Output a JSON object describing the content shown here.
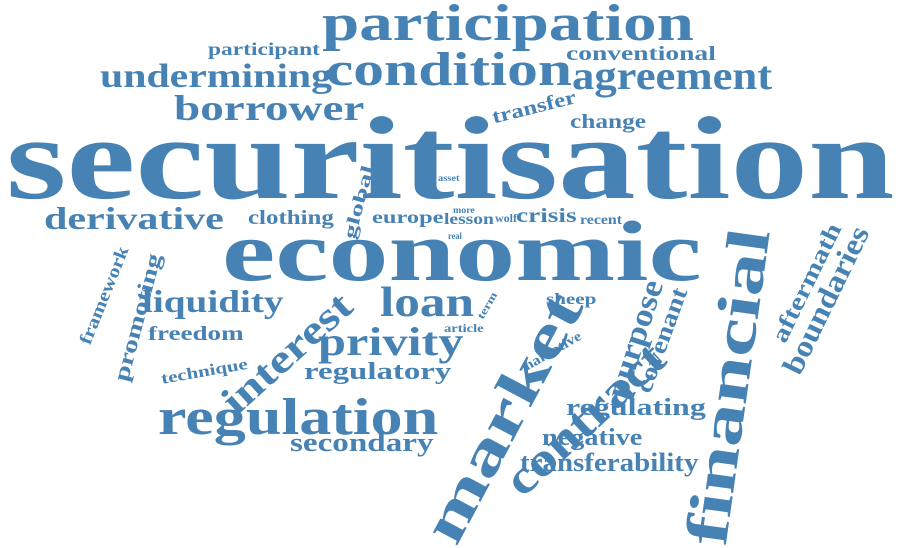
{
  "word_cloud": {
    "color": "#4682b4",
    "words": [
      {
        "id": "securitisation",
        "text": "securitisation"
      },
      {
        "id": "economic",
        "text": "economic"
      },
      {
        "id": "participation",
        "text": "participation"
      },
      {
        "id": "condition",
        "text": "condition"
      },
      {
        "id": "agreement",
        "text": "agreement"
      },
      {
        "id": "undermining",
        "text": "undermining"
      },
      {
        "id": "borrower",
        "text": "borrower"
      },
      {
        "id": "participant",
        "text": "participant"
      },
      {
        "id": "conventional",
        "text": "conventional"
      },
      {
        "id": "transfer",
        "text": "transfer"
      },
      {
        "id": "change",
        "text": "change"
      },
      {
        "id": "asset",
        "text": "asset"
      },
      {
        "id": "derivative",
        "text": "derivative"
      },
      {
        "id": "clothing",
        "text": "clothing"
      },
      {
        "id": "global",
        "text": "global"
      },
      {
        "id": "europe",
        "text": "europe"
      },
      {
        "id": "more",
        "text": "more"
      },
      {
        "id": "lesson",
        "text": "lesson"
      },
      {
        "id": "wolf",
        "text": "wolf"
      },
      {
        "id": "crisis",
        "text": "crisis"
      },
      {
        "id": "recent",
        "text": "recent"
      },
      {
        "id": "real",
        "text": "real"
      },
      {
        "id": "framework",
        "text": "framework"
      },
      {
        "id": "promoting",
        "text": "promoting"
      },
      {
        "id": "liquidity",
        "text": "liquidity"
      },
      {
        "id": "freedom",
        "text": "freedom"
      },
      {
        "id": "technique",
        "text": "technique"
      },
      {
        "id": "interest",
        "text": "interest"
      },
      {
        "id": "loan",
        "text": "loan"
      },
      {
        "id": "term",
        "text": "term"
      },
      {
        "id": "article",
        "text": "article"
      },
      {
        "id": "sheep",
        "text": "sheep"
      },
      {
        "id": "privity",
        "text": "privity"
      },
      {
        "id": "narrative",
        "text": "narrative"
      },
      {
        "id": "regulatory",
        "text": "regulatory"
      },
      {
        "id": "regulation",
        "text": "regulation"
      },
      {
        "id": "secondary",
        "text": "secondary"
      },
      {
        "id": "market",
        "text": "market"
      },
      {
        "id": "contract",
        "text": "contract"
      },
      {
        "id": "purpose",
        "text": "purpose"
      },
      {
        "id": "covenant",
        "text": "covenant"
      },
      {
        "id": "regulating",
        "text": "regulating"
      },
      {
        "id": "negative",
        "text": "negative"
      },
      {
        "id": "transferability",
        "text": "transferability"
      },
      {
        "id": "financial",
        "text": "financial"
      },
      {
        "id": "aftermath",
        "text": "aftermath"
      },
      {
        "id": "boundaries",
        "text": "boundaries"
      }
    ]
  }
}
